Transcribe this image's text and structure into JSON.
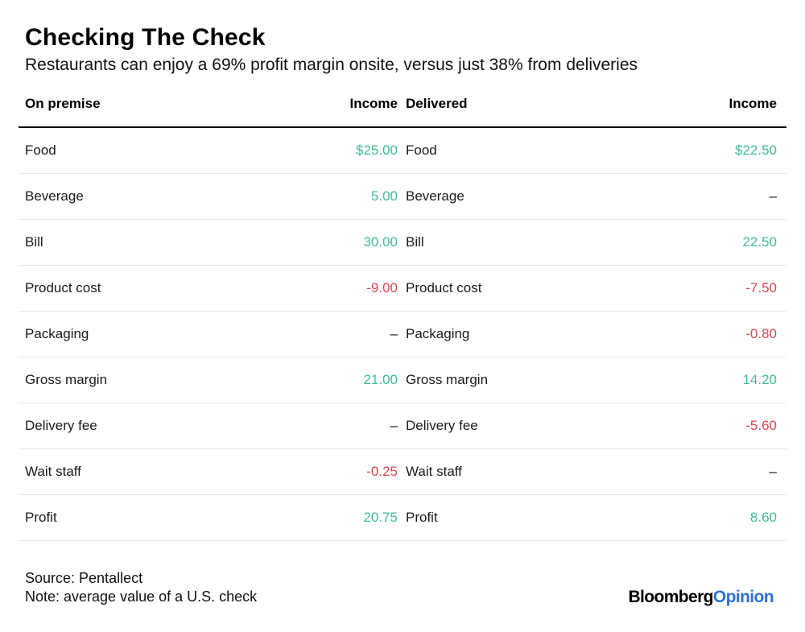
{
  "title": "Checking The Check",
  "subtitle": "Restaurants can enjoy a 69% profit margin onsite, versus just 38% from deliveries",
  "colors": {
    "positive": "#3cbf91",
    "negative": "#e0454f",
    "logo_accent": "#2d6fd6"
  },
  "chart_data": {
    "type": "table",
    "columns": [
      "On premise",
      "Income",
      "Delivered",
      "Income"
    ],
    "rows": [
      {
        "on_premise_item": "Food",
        "on_premise_income": "$25.00",
        "on_premise_sign": "pos",
        "delivered_item": "Food",
        "delivered_income": "$22.50",
        "delivered_sign": "pos"
      },
      {
        "on_premise_item": "Beverage",
        "on_premise_income": "5.00",
        "on_premise_sign": "pos",
        "delivered_item": "Beverage",
        "delivered_income": "–",
        "delivered_sign": "nil"
      },
      {
        "on_premise_item": "Bill",
        "on_premise_income": "30.00",
        "on_premise_sign": "pos",
        "delivered_item": "Bill",
        "delivered_income": "22.50",
        "delivered_sign": "pos"
      },
      {
        "on_premise_item": "Product cost",
        "on_premise_income": "-9.00",
        "on_premise_sign": "neg",
        "delivered_item": "Product cost",
        "delivered_income": "-7.50",
        "delivered_sign": "neg"
      },
      {
        "on_premise_item": "Packaging",
        "on_premise_income": "–",
        "on_premise_sign": "nil",
        "delivered_item": "Packaging",
        "delivered_income": "-0.80",
        "delivered_sign": "neg"
      },
      {
        "on_premise_item": "Gross margin",
        "on_premise_income": "21.00",
        "on_premise_sign": "pos",
        "delivered_item": "Gross margin",
        "delivered_income": "14.20",
        "delivered_sign": "pos"
      },
      {
        "on_premise_item": "Delivery fee",
        "on_premise_income": "–",
        "on_premise_sign": "nil",
        "delivered_item": "Delivery fee",
        "delivered_income": "-5.60",
        "delivered_sign": "neg"
      },
      {
        "on_premise_item": "Wait staff",
        "on_premise_income": "-0.25",
        "on_premise_sign": "neg",
        "delivered_item": "Wait staff",
        "delivered_income": "–",
        "delivered_sign": "nil"
      },
      {
        "on_premise_item": "Profit",
        "on_premise_income": "20.75",
        "on_premise_sign": "pos",
        "delivered_item": "Profit",
        "delivered_income": "8.60",
        "delivered_sign": "pos"
      }
    ]
  },
  "footer": {
    "source": "Source: Pentallect",
    "note": "Note: average value of a U.S. check"
  },
  "logo": {
    "part1": "Bloomberg",
    "part2": "Opinion"
  }
}
